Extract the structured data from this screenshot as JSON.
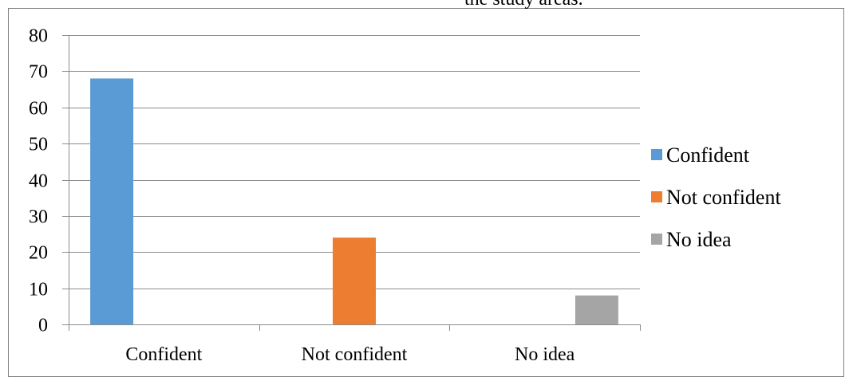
{
  "caption_fragment": "the study areas.",
  "chart_data": {
    "type": "bar",
    "categories": [
      "Confident",
      "Not confident",
      "No idea"
    ],
    "series": [
      {
        "name": "Confident",
        "values": [
          68,
          null,
          null
        ],
        "color": "#5B9BD5"
      },
      {
        "name": "Not confident",
        "values": [
          null,
          24,
          null
        ],
        "color": "#ED7D31"
      },
      {
        "name": "No idea",
        "values": [
          null,
          null,
          8
        ],
        "color": "#A5A5A5"
      }
    ],
    "ylim": [
      0,
      80
    ],
    "yticks": [
      0,
      10,
      20,
      30,
      40,
      50,
      60,
      70,
      80
    ],
    "grid": true,
    "legend_position": "right",
    "title": "",
    "xlabel": "",
    "ylabel": ""
  }
}
